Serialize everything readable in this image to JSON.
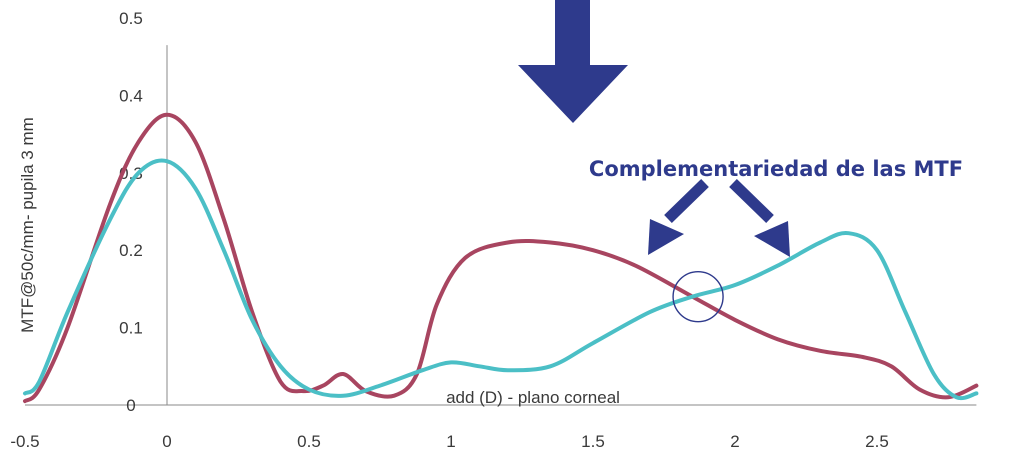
{
  "chart_data": {
    "type": "line",
    "title": "",
    "xlabel": "add (D) - plano corneal",
    "ylabel": "MTF@50c/mm- pupila 3 mm",
    "xlim": [
      -0.5,
      2.85
    ],
    "ylim": [
      0,
      0.5
    ],
    "x_ticks": [
      "-0.5",
      "0",
      "0.5",
      "1",
      "1.5",
      "2",
      "2.5"
    ],
    "y_ticks": [
      "0",
      "0.1",
      "0.2",
      "0.3",
      "0.4",
      "0.5"
    ],
    "grid": false,
    "legend": "none",
    "series": [
      {
        "color": "#a84560",
        "points": [
          [
            -0.5,
            0.005
          ],
          [
            -0.45,
            0.02
          ],
          [
            -0.35,
            0.1
          ],
          [
            -0.2,
            0.26
          ],
          [
            -0.1,
            0.34
          ],
          [
            0.0,
            0.375
          ],
          [
            0.1,
            0.34
          ],
          [
            0.2,
            0.24
          ],
          [
            0.3,
            0.12
          ],
          [
            0.4,
            0.03
          ],
          [
            0.48,
            0.018
          ],
          [
            0.55,
            0.025
          ],
          [
            0.62,
            0.04
          ],
          [
            0.7,
            0.018
          ],
          [
            0.8,
            0.012
          ],
          [
            0.88,
            0.04
          ],
          [
            0.95,
            0.13
          ],
          [
            1.05,
            0.19
          ],
          [
            1.2,
            0.21
          ],
          [
            1.35,
            0.21
          ],
          [
            1.5,
            0.2
          ],
          [
            1.65,
            0.18
          ],
          [
            1.85,
            0.14
          ],
          [
            2.0,
            0.11
          ],
          [
            2.15,
            0.085
          ],
          [
            2.3,
            0.07
          ],
          [
            2.45,
            0.062
          ],
          [
            2.55,
            0.05
          ],
          [
            2.65,
            0.02
          ],
          [
            2.75,
            0.01
          ],
          [
            2.85,
            0.025
          ]
        ]
      },
      {
        "color": "#4bbfc6",
        "points": [
          [
            -0.5,
            0.015
          ],
          [
            -0.45,
            0.03
          ],
          [
            -0.35,
            0.12
          ],
          [
            -0.2,
            0.24
          ],
          [
            -0.1,
            0.3
          ],
          [
            0.0,
            0.315
          ],
          [
            0.1,
            0.28
          ],
          [
            0.2,
            0.2
          ],
          [
            0.3,
            0.11
          ],
          [
            0.4,
            0.05
          ],
          [
            0.5,
            0.02
          ],
          [
            0.62,
            0.012
          ],
          [
            0.75,
            0.025
          ],
          [
            0.9,
            0.045
          ],
          [
            1.0,
            0.055
          ],
          [
            1.1,
            0.05
          ],
          [
            1.2,
            0.045
          ],
          [
            1.35,
            0.05
          ],
          [
            1.5,
            0.08
          ],
          [
            1.7,
            0.12
          ],
          [
            1.85,
            0.14
          ],
          [
            2.0,
            0.155
          ],
          [
            2.15,
            0.18
          ],
          [
            2.3,
            0.21
          ],
          [
            2.4,
            0.222
          ],
          [
            2.5,
            0.2
          ],
          [
            2.6,
            0.12
          ],
          [
            2.7,
            0.04
          ],
          [
            2.78,
            0.01
          ],
          [
            2.85,
            0.015
          ]
        ]
      }
    ],
    "annotations": {
      "text": "Complementariedad de las MTF",
      "color": "#2e3a8c",
      "circle_at": [
        1.87,
        0.14
      ]
    }
  }
}
